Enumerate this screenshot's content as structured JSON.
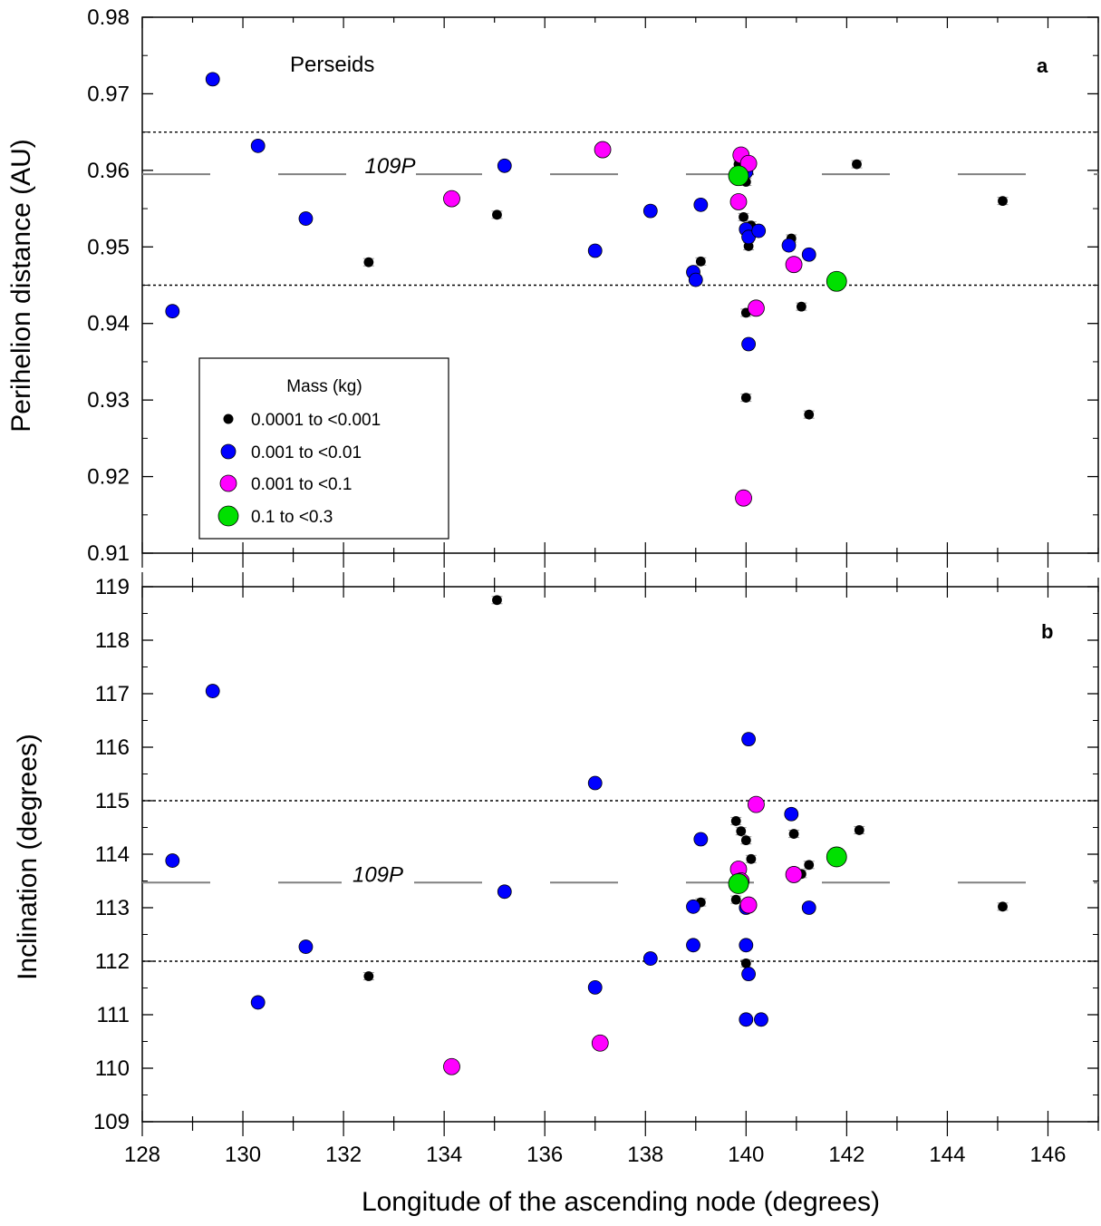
{
  "chart_data": [
    {
      "type": "scatter",
      "panel_label": "a",
      "annotation": "Perseids",
      "ylabel": "Perihelion distance (AU)",
      "ylim": [
        0.91,
        0.98
      ],
      "yticks": [
        0.91,
        0.92,
        0.93,
        0.94,
        0.95,
        0.96,
        0.97,
        0.98
      ],
      "xlim": [
        128,
        147
      ],
      "reference_lines": [
        0.965,
        0.945
      ],
      "comet": {
        "label": "109P",
        "value": 0.9595
      },
      "series": [
        {
          "class": "m1",
          "points": [
            [
              132.5,
              0.948
            ],
            [
              135.05,
              0.9542
            ],
            [
              139.1,
              0.9481
            ],
            [
              139.85,
              0.9608
            ],
            [
              139.95,
              0.9539
            ],
            [
              140.0,
              0.9585
            ],
            [
              140.05,
              0.9501
            ],
            [
              140.1,
              0.9528
            ],
            [
              140.0,
              0.9414
            ],
            [
              140.0,
              0.9303
            ],
            [
              140.9,
              0.9511
            ],
            [
              141.1,
              0.9422
            ],
            [
              141.25,
              0.9281
            ],
            [
              142.2,
              0.9608
            ],
            [
              145.1,
              0.956
            ]
          ]
        },
        {
          "class": "m2",
          "points": [
            [
              128.6,
              0.9416
            ],
            [
              129.4,
              0.9719
            ],
            [
              130.3,
              0.9632
            ],
            [
              131.25,
              0.9537
            ],
            [
              135.2,
              0.9606
            ],
            [
              137.0,
              0.9495
            ],
            [
              138.1,
              0.9547
            ],
            [
              138.95,
              0.9467
            ],
            [
              139.0,
              0.9457
            ],
            [
              139.1,
              0.9555
            ],
            [
              140.0,
              0.9523
            ],
            [
              140.05,
              0.9513
            ],
            [
              140.05,
              0.9373
            ],
            [
              140.25,
              0.9521
            ],
            [
              140.85,
              0.9502
            ],
            [
              141.25,
              0.949
            ],
            [
              140.0,
              0.9598
            ]
          ]
        },
        {
          "class": "m3",
          "points": [
            [
              134.15,
              0.9563
            ],
            [
              137.15,
              0.9627
            ],
            [
              139.85,
              0.9559
            ],
            [
              139.9,
              0.962
            ],
            [
              140.05,
              0.9609
            ],
            [
              140.2,
              0.942
            ],
            [
              140.95,
              0.9477
            ],
            [
              139.95,
              0.9172
            ]
          ]
        },
        {
          "class": "m4",
          "points": [
            [
              139.85,
              0.9593
            ],
            [
              141.8,
              0.9455
            ]
          ]
        }
      ]
    },
    {
      "type": "scatter",
      "panel_label": "b",
      "ylabel": "Inclination (degrees)",
      "xlabel": "Longitude of the ascending node (degrees)",
      "ylim": [
        109,
        119
      ],
      "yticks": [
        109,
        110,
        111,
        112,
        113,
        114,
        115,
        116,
        117,
        118,
        119
      ],
      "xlim": [
        128,
        147
      ],
      "xticks": [
        128,
        130,
        132,
        134,
        136,
        138,
        140,
        142,
        144,
        146
      ],
      "reference_lines": [
        115,
        112
      ],
      "comet": {
        "label": "109P",
        "value": 113.47
      },
      "series": [
        {
          "class": "m1",
          "points": [
            [
              135.05,
              118.75
            ],
            [
              132.5,
              111.72
            ],
            [
              139.8,
              114.62
            ],
            [
              139.9,
              114.43
            ],
            [
              140.0,
              114.26
            ],
            [
              139.9,
              113.72
            ],
            [
              140.1,
              113.91
            ],
            [
              139.8,
              113.15
            ],
            [
              139.1,
              113.1
            ],
            [
              140.0,
              111.96
            ],
            [
              140.95,
              114.38
            ],
            [
              141.25,
              113.8
            ],
            [
              141.1,
              113.63
            ],
            [
              142.25,
              114.45
            ],
            [
              145.1,
              113.02
            ]
          ]
        },
        {
          "class": "m2",
          "points": [
            [
              128.6,
              113.88
            ],
            [
              129.4,
              117.05
            ],
            [
              130.3,
              111.23
            ],
            [
              131.25,
              112.27
            ],
            [
              135.2,
              113.3
            ],
            [
              137.0,
              115.33
            ],
            [
              137.0,
              111.51
            ],
            [
              138.1,
              112.05
            ],
            [
              138.95,
              113.02
            ],
            [
              138.95,
              112.3
            ],
            [
              139.1,
              114.28
            ],
            [
              140.05,
              116.15
            ],
            [
              140.0,
              113.0
            ],
            [
              140.0,
              112.3
            ],
            [
              140.05,
              111.76
            ],
            [
              140.0,
              110.91
            ],
            [
              140.3,
              110.91
            ],
            [
              140.9,
              114.75
            ],
            [
              141.25,
              113.0
            ]
          ]
        },
        {
          "class": "m3",
          "points": [
            [
              134.15,
              110.03
            ],
            [
              137.1,
              110.47
            ],
            [
              140.2,
              114.93
            ],
            [
              139.85,
              113.72
            ],
            [
              139.9,
              113.5
            ],
            [
              140.05,
              113.05
            ],
            [
              140.95,
              113.62
            ]
          ]
        },
        {
          "class": "m4",
          "points": [
            [
              139.85,
              113.45
            ],
            [
              141.8,
              113.95
            ]
          ]
        }
      ]
    }
  ],
  "legend": {
    "title": "Mass (kg)",
    "items": [
      {
        "label": "0.0001 to <0.001",
        "color": "#000000"
      },
      {
        "label": "0.001 to <0.01",
        "color": "#0000ff"
      },
      {
        "label": "0.001 to <0.1",
        "color": "#ff00ff"
      },
      {
        "label": "0.1 to <0.3",
        "color": "#00e000"
      }
    ]
  },
  "colors": {
    "m1": "#000000",
    "m2": "#0000ff",
    "m3": "#ff00ff",
    "m4": "#00e000",
    "comet_line": "#808080",
    "errorbar": "#999999"
  }
}
